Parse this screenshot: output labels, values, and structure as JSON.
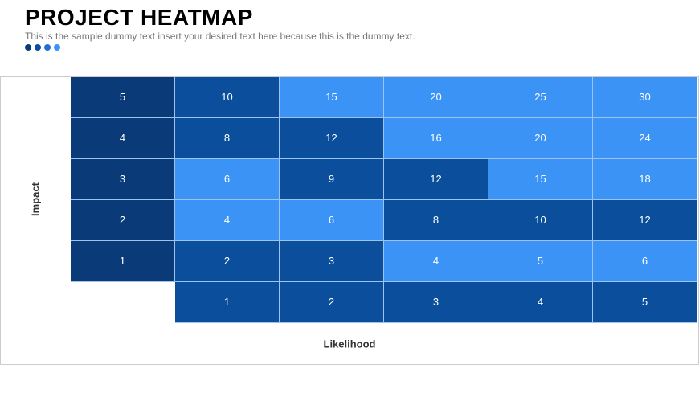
{
  "header": {
    "title": "PROJECT HEATMAP",
    "subtitle": "This is the sample dummy text insert your desired text here because this is the dummy text."
  },
  "heatmap": {
    "y_label": "Impact",
    "x_label": "Likelihood",
    "impact_color": "#0b3a78",
    "likelihood_color": "#0b4f9c",
    "rows": [
      {
        "impact": 5,
        "cells": [
          {
            "value": 10,
            "color": "#0b4f9c"
          },
          {
            "value": 15,
            "color": "#3a93f5"
          },
          {
            "value": 20,
            "color": "#3a93f5"
          },
          {
            "value": 25,
            "color": "#3a93f5"
          },
          {
            "value": 30,
            "color": "#3a93f5"
          }
        ]
      },
      {
        "impact": 4,
        "cells": [
          {
            "value": 8,
            "color": "#0b4f9c"
          },
          {
            "value": 12,
            "color": "#0b4f9c"
          },
          {
            "value": 16,
            "color": "#3a93f5"
          },
          {
            "value": 20,
            "color": "#3a93f5"
          },
          {
            "value": 24,
            "color": "#3a93f5"
          }
        ]
      },
      {
        "impact": 3,
        "cells": [
          {
            "value": 6,
            "color": "#3a93f5"
          },
          {
            "value": 9,
            "color": "#0b4f9c"
          },
          {
            "value": 12,
            "color": "#0b4f9c"
          },
          {
            "value": 15,
            "color": "#3a93f5"
          },
          {
            "value": 18,
            "color": "#3a93f5"
          }
        ]
      },
      {
        "impact": 2,
        "cells": [
          {
            "value": 4,
            "color": "#3a93f5"
          },
          {
            "value": 6,
            "color": "#3a93f5"
          },
          {
            "value": 8,
            "color": "#0b4f9c"
          },
          {
            "value": 10,
            "color": "#0b4f9c"
          },
          {
            "value": 12,
            "color": "#0b4f9c"
          }
        ]
      },
      {
        "impact": 1,
        "cells": [
          {
            "value": 2,
            "color": "#0b4f9c"
          },
          {
            "value": 3,
            "color": "#0b4f9c"
          },
          {
            "value": 4,
            "color": "#3a93f5"
          },
          {
            "value": 5,
            "color": "#3a93f5"
          },
          {
            "value": 6,
            "color": "#3a93f5"
          }
        ]
      }
    ],
    "likelihood": [
      1,
      2,
      3,
      4,
      5
    ]
  }
}
